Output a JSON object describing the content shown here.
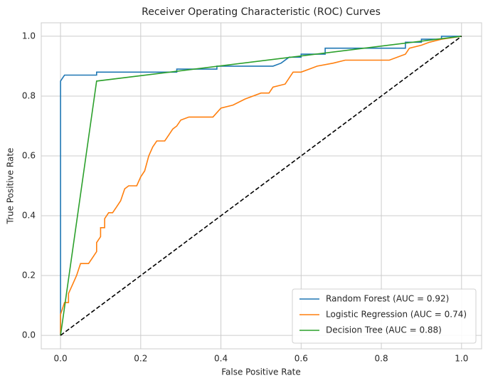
{
  "chart_data": {
    "type": "line",
    "title": "Receiver Operating Characteristic (ROC) Curves",
    "xlabel": "False Positive Rate",
    "ylabel": "True Positive Rate",
    "xlim": [
      -0.048,
      1.05
    ],
    "ylim": [
      -0.045,
      1.045
    ],
    "xticks": [
      {
        "value": 0,
        "label": "0.0"
      },
      0.2,
      0.4,
      0.6,
      0.8,
      {
        "value": 1,
        "label": "1.0"
      }
    ],
    "yticks": [
      {
        "value": 0,
        "label": "0.0"
      },
      0.2,
      0.4,
      0.6,
      0.8,
      {
        "value": 1,
        "label": "1.0"
      }
    ],
    "grid": true,
    "legend": "lower right",
    "series": [
      {
        "name": "Random Forest (AUC = 0.92)",
        "color": "#1f77b4",
        "x": [
          0,
          0,
          0.005,
          0.01,
          0.09,
          0.09,
          0.29,
          0.29,
          0.39,
          0.39,
          0.53,
          0.55,
          0.57,
          0.6,
          0.6,
          0.66,
          0.66,
          0.86,
          0.86,
          0.9,
          0.9,
          0.95,
          0.95,
          1
        ],
        "values": [
          0,
          0.85,
          0.86,
          0.87,
          0.87,
          0.88,
          0.88,
          0.89,
          0.89,
          0.9,
          0.9,
          0.91,
          0.93,
          0.93,
          0.94,
          0.94,
          0.96,
          0.96,
          0.98,
          0.98,
          0.99,
          0.99,
          1,
          1
        ]
      },
      {
        "name": "Logistic Regression (AUC = 0.74)",
        "color": "#ff7f0e",
        "x": [
          0,
          0,
          0.01,
          0.02,
          0.02,
          0.03,
          0.04,
          0.05,
          0.07,
          0.08,
          0.09,
          0.09,
          0.1,
          0.1,
          0.11,
          0.11,
          0.12,
          0.13,
          0.14,
          0.15,
          0.16,
          0.17,
          0.19,
          0.2,
          0.21,
          0.22,
          0.23,
          0.24,
          0.26,
          0.27,
          0.28,
          0.29,
          0.3,
          0.32,
          0.38,
          0.4,
          0.43,
          0.46,
          0.5,
          0.52,
          0.53,
          0.56,
          0.57,
          0.58,
          0.6,
          0.62,
          0.64,
          0.68,
          0.71,
          0.82,
          0.86,
          0.87,
          0.9,
          0.92,
          0.95,
          1
        ],
        "values": [
          0,
          0.07,
          0.11,
          0.11,
          0.14,
          0.17,
          0.2,
          0.24,
          0.24,
          0.26,
          0.28,
          0.31,
          0.33,
          0.36,
          0.36,
          0.39,
          0.41,
          0.41,
          0.43,
          0.45,
          0.49,
          0.5,
          0.5,
          0.53,
          0.55,
          0.6,
          0.63,
          0.65,
          0.65,
          0.67,
          0.69,
          0.7,
          0.72,
          0.73,
          0.73,
          0.76,
          0.77,
          0.79,
          0.81,
          0.81,
          0.83,
          0.84,
          0.86,
          0.88,
          0.88,
          0.89,
          0.9,
          0.91,
          0.92,
          0.92,
          0.94,
          0.96,
          0.97,
          0.98,
          0.99,
          1
        ]
      },
      {
        "name": "Decision Tree (AUC = 0.88)",
        "color": "#2ca02c",
        "x": [
          0,
          0.09,
          1
        ],
        "values": [
          0,
          0.85,
          1
        ]
      }
    ],
    "diagonal": {
      "color": "#000000",
      "dashed": true,
      "x": [
        0,
        1
      ],
      "values": [
        0,
        1
      ]
    }
  }
}
